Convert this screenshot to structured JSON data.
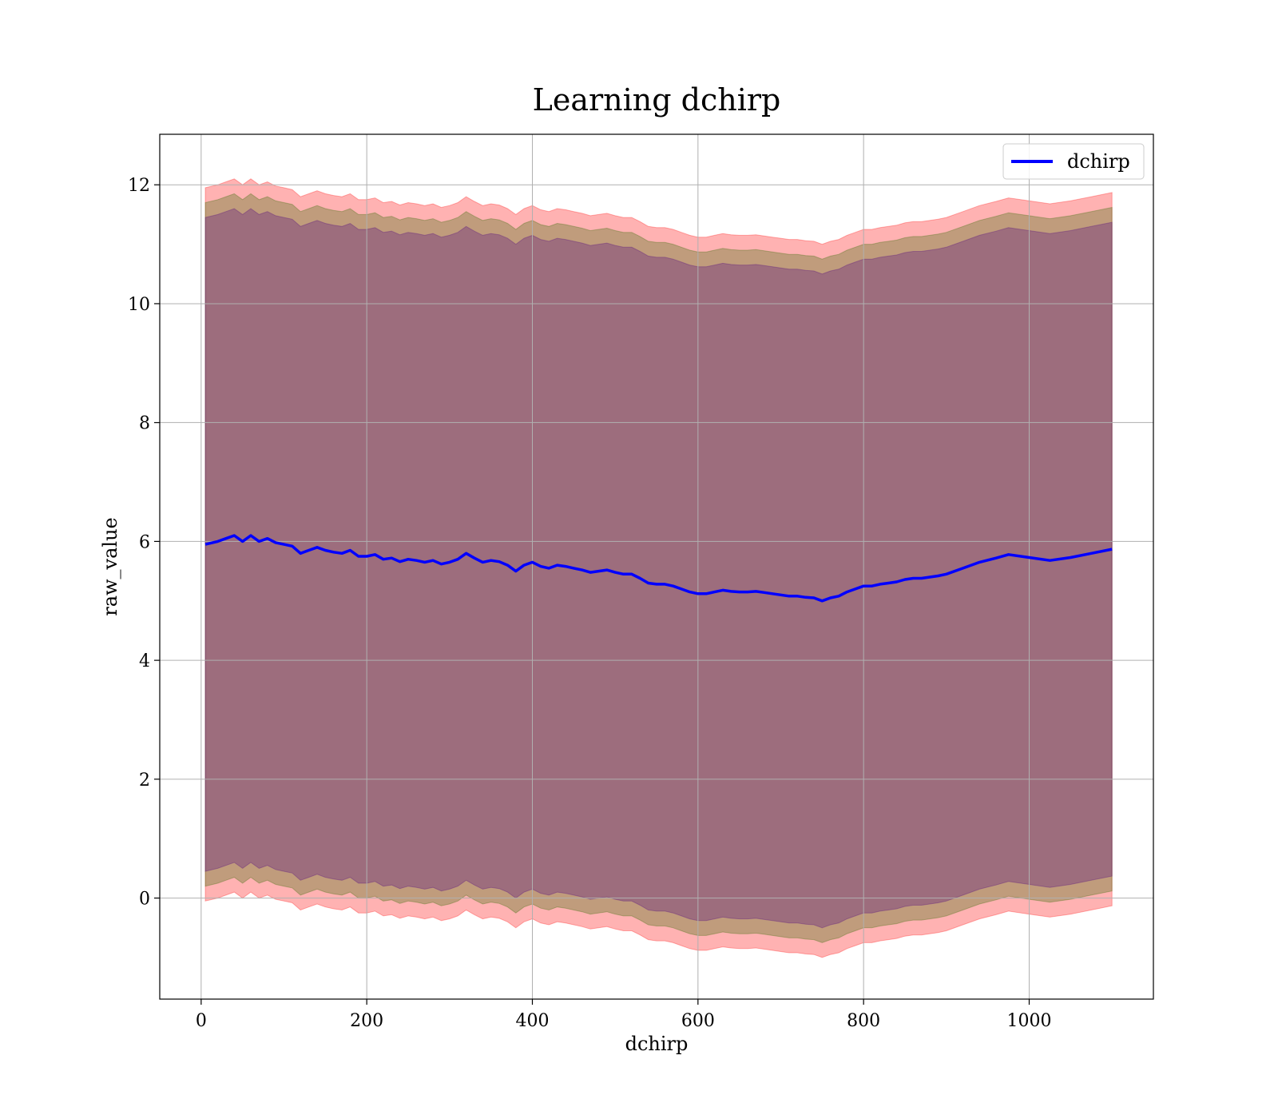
{
  "chart_data": {
    "type": "line",
    "title": "Learning dchirp",
    "xlabel": "dchirp",
    "ylabel": "raw_value",
    "xlim": [
      -50,
      1150
    ],
    "ylim": [
      -1.7,
      12.85
    ],
    "xticks": [
      0,
      200,
      400,
      600,
      800,
      1000
    ],
    "yticks": [
      0,
      2,
      4,
      6,
      8,
      10,
      12
    ],
    "xtick_labels": [
      "0",
      "200",
      "400",
      "600",
      "800",
      "1000"
    ],
    "ytick_labels": [
      "0",
      "2",
      "4",
      "6",
      "8",
      "10",
      "12"
    ],
    "grid": true,
    "legend_position": "top-right",
    "series": [
      {
        "name": "dchirp",
        "color": "#0000ff",
        "x": [
          5,
          20,
          30,
          40,
          50,
          60,
          70,
          80,
          90,
          100,
          110,
          120,
          130,
          140,
          150,
          160,
          170,
          180,
          190,
          200,
          210,
          220,
          230,
          240,
          250,
          260,
          270,
          280,
          290,
          300,
          310,
          320,
          330,
          340,
          350,
          360,
          370,
          380,
          390,
          400,
          410,
          420,
          430,
          440,
          450,
          460,
          470,
          480,
          490,
          500,
          510,
          520,
          530,
          540,
          550,
          560,
          570,
          580,
          590,
          600,
          610,
          620,
          630,
          640,
          650,
          660,
          670,
          680,
          690,
          700,
          710,
          720,
          730,
          740,
          750,
          760,
          770,
          780,
          790,
          800,
          810,
          820,
          830,
          840,
          850,
          860,
          870,
          880,
          890,
          900,
          920,
          940,
          960,
          975,
          1000,
          1025,
          1050,
          1075,
          1100
        ],
        "y": [
          5.95,
          6.0,
          6.05,
          6.1,
          6.0,
          6.1,
          6.0,
          6.05,
          5.98,
          5.95,
          5.92,
          5.8,
          5.85,
          5.9,
          5.85,
          5.82,
          5.8,
          5.85,
          5.75,
          5.75,
          5.78,
          5.7,
          5.72,
          5.66,
          5.7,
          5.68,
          5.65,
          5.68,
          5.62,
          5.65,
          5.7,
          5.8,
          5.72,
          5.65,
          5.68,
          5.66,
          5.6,
          5.5,
          5.6,
          5.65,
          5.58,
          5.55,
          5.6,
          5.58,
          5.55,
          5.52,
          5.48,
          5.5,
          5.52,
          5.48,
          5.45,
          5.45,
          5.38,
          5.3,
          5.28,
          5.28,
          5.25,
          5.2,
          5.15,
          5.12,
          5.12,
          5.15,
          5.18,
          5.16,
          5.15,
          5.15,
          5.16,
          5.14,
          5.12,
          5.1,
          5.08,
          5.08,
          5.06,
          5.05,
          5.0,
          5.05,
          5.08,
          5.15,
          5.2,
          5.25,
          5.25,
          5.28,
          5.3,
          5.32,
          5.36,
          5.38,
          5.38,
          5.4,
          5.42,
          5.45,
          5.55,
          5.65,
          5.72,
          5.78,
          5.73,
          5.68,
          5.73,
          5.8,
          5.87
        ]
      }
    ],
    "bands": [
      {
        "color": "#ff0000",
        "opacity": 0.3,
        "half_width": 6.0
      },
      {
        "color": "#2e6b00",
        "opacity": 0.3,
        "half_width": 5.75
      },
      {
        "color": "#4b0082",
        "opacity": 0.3,
        "half_width": 5.5
      }
    ]
  }
}
